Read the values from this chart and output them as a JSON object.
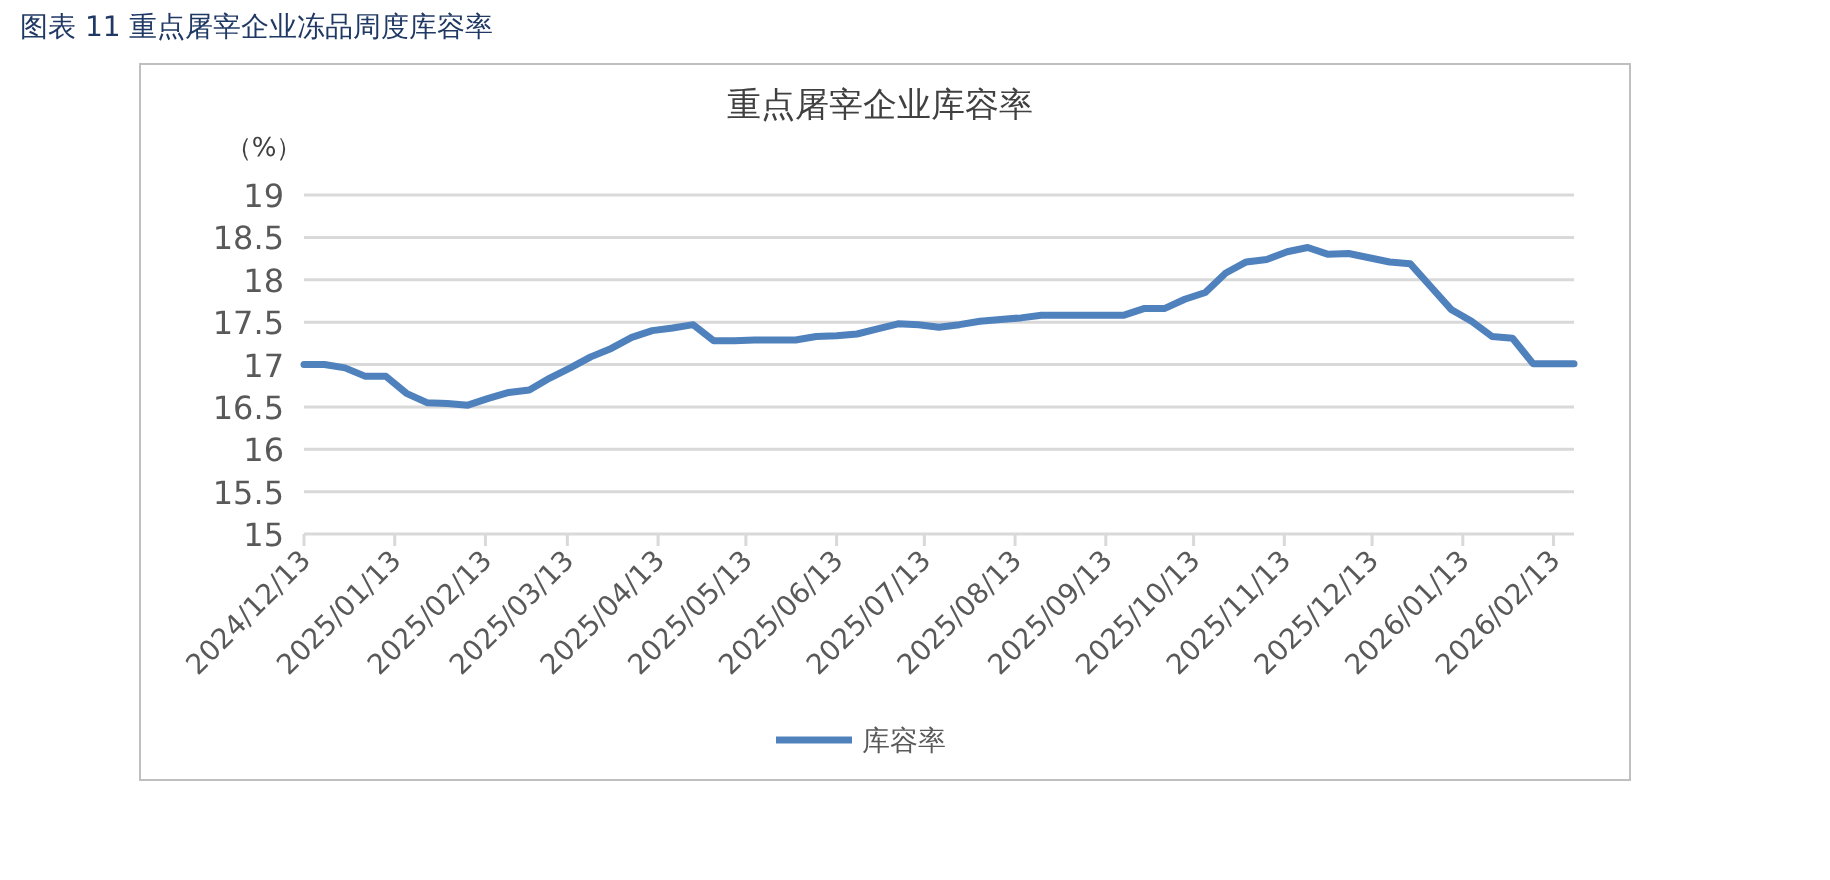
{
  "chart_data": {
    "type": "line",
    "title": "图表 11  重点屠宰企业冻品周度库容率",
    "subtitle": "重点屠宰企业库容率",
    "ylabel": "（%）",
    "x": [
      "2024-12-13",
      "2024-12-20",
      "2024-12-27",
      "2025-01-03",
      "2025-01-10",
      "2025-01-17",
      "2025-01-24",
      "2025-01-31",
      "2025-02-07",
      "2025-02-14",
      "2025-02-21",
      "2025-02-28",
      "2025-03-07",
      "2025-03-14",
      "2025-03-21",
      "2025-03-28",
      "2025-04-04",
      "2025-04-11",
      "2025-04-18",
      "2025-04-25",
      "2025-05-02",
      "2025-05-09",
      "2025-05-16",
      "2025-05-23",
      "2025-05-30",
      "2025-06-06",
      "2025-06-13",
      "2025-06-20",
      "2025-06-27",
      "2025-07-04",
      "2025-07-11",
      "2025-07-18",
      "2025-07-25",
      "2025-08-01",
      "2025-08-08",
      "2025-08-15",
      "2025-08-22",
      "2025-08-29",
      "2025-09-05",
      "2025-09-12",
      "2025-09-19",
      "2025-09-26",
      "2025-10-03",
      "2025-10-10",
      "2025-10-17",
      "2025-10-24",
      "2025-10-31",
      "2025-11-07",
      "2025-11-14",
      "2025-11-21",
      "2025-11-28",
      "2025-12-05",
      "2025-12-12",
      "2025-12-19",
      "2025-12-26",
      "2026-01-02",
      "2026-01-09",
      "2026-01-16",
      "2026-01-23",
      "2026-01-30",
      "2026-02-06",
      "2026-02-13",
      "2026-02-20"
    ],
    "series": [
      {
        "name": "库容率",
        "color": "#4f81bd",
        "values": [
          17.0,
          17.0,
          16.96,
          16.86,
          16.86,
          16.66,
          16.55,
          16.54,
          16.52,
          16.6,
          16.67,
          16.7,
          16.84,
          16.96,
          17.09,
          17.19,
          17.32,
          17.4,
          17.43,
          17.47,
          17.28,
          17.28,
          17.29,
          17.29,
          17.29,
          17.33,
          17.34,
          17.36,
          17.42,
          17.48,
          17.47,
          17.44,
          17.47,
          17.51,
          17.53,
          17.55,
          17.58,
          17.58,
          17.58,
          17.58,
          17.58,
          17.66,
          17.66,
          17.77,
          17.85,
          18.08,
          18.21,
          18.24,
          18.33,
          18.38,
          18.3,
          18.31,
          18.26,
          18.21,
          18.19,
          17.92,
          17.65,
          17.51,
          17.33,
          17.31,
          17.01,
          17.01,
          17.01
        ]
      }
    ],
    "xlim": [
      "2024-12-13",
      "2026-02-20"
    ],
    "xticks": [
      {
        "value": "2024-12-13",
        "label": "2024/12/13"
      },
      {
        "value": "2025-01-13",
        "label": "2025/01/13"
      },
      {
        "value": "2025-02-13",
        "label": "2025/02/13"
      },
      {
        "value": "2025-03-13",
        "label": "2025/03/13"
      },
      {
        "value": "2025-04-13",
        "label": "2025/04/13"
      },
      {
        "value": "2025-05-13",
        "label": "2025/05/13"
      },
      {
        "value": "2025-06-13",
        "label": "2025/06/13"
      },
      {
        "value": "2025-07-13",
        "label": "2025/07/13"
      },
      {
        "value": "2025-08-13",
        "label": "2025/08/13"
      },
      {
        "value": "2025-09-13",
        "label": "2025/09/13"
      },
      {
        "value": "2025-10-13",
        "label": "2025/10/13"
      },
      {
        "value": "2025-11-13",
        "label": "2025/11/13"
      },
      {
        "value": "2025-12-13",
        "label": "2025/12/13"
      },
      {
        "value": "2026-01-13",
        "label": "2026/01/13"
      },
      {
        "value": "2026-02-13",
        "label": "2026/02/13"
      }
    ],
    "ylim": [
      15,
      19
    ],
    "yticks": [
      15,
      15.5,
      16,
      16.5,
      17,
      17.5,
      18,
      18.5,
      19
    ],
    "grid": "y",
    "legend": "bottom",
    "marker": "none",
    "line_style": "solid"
  }
}
